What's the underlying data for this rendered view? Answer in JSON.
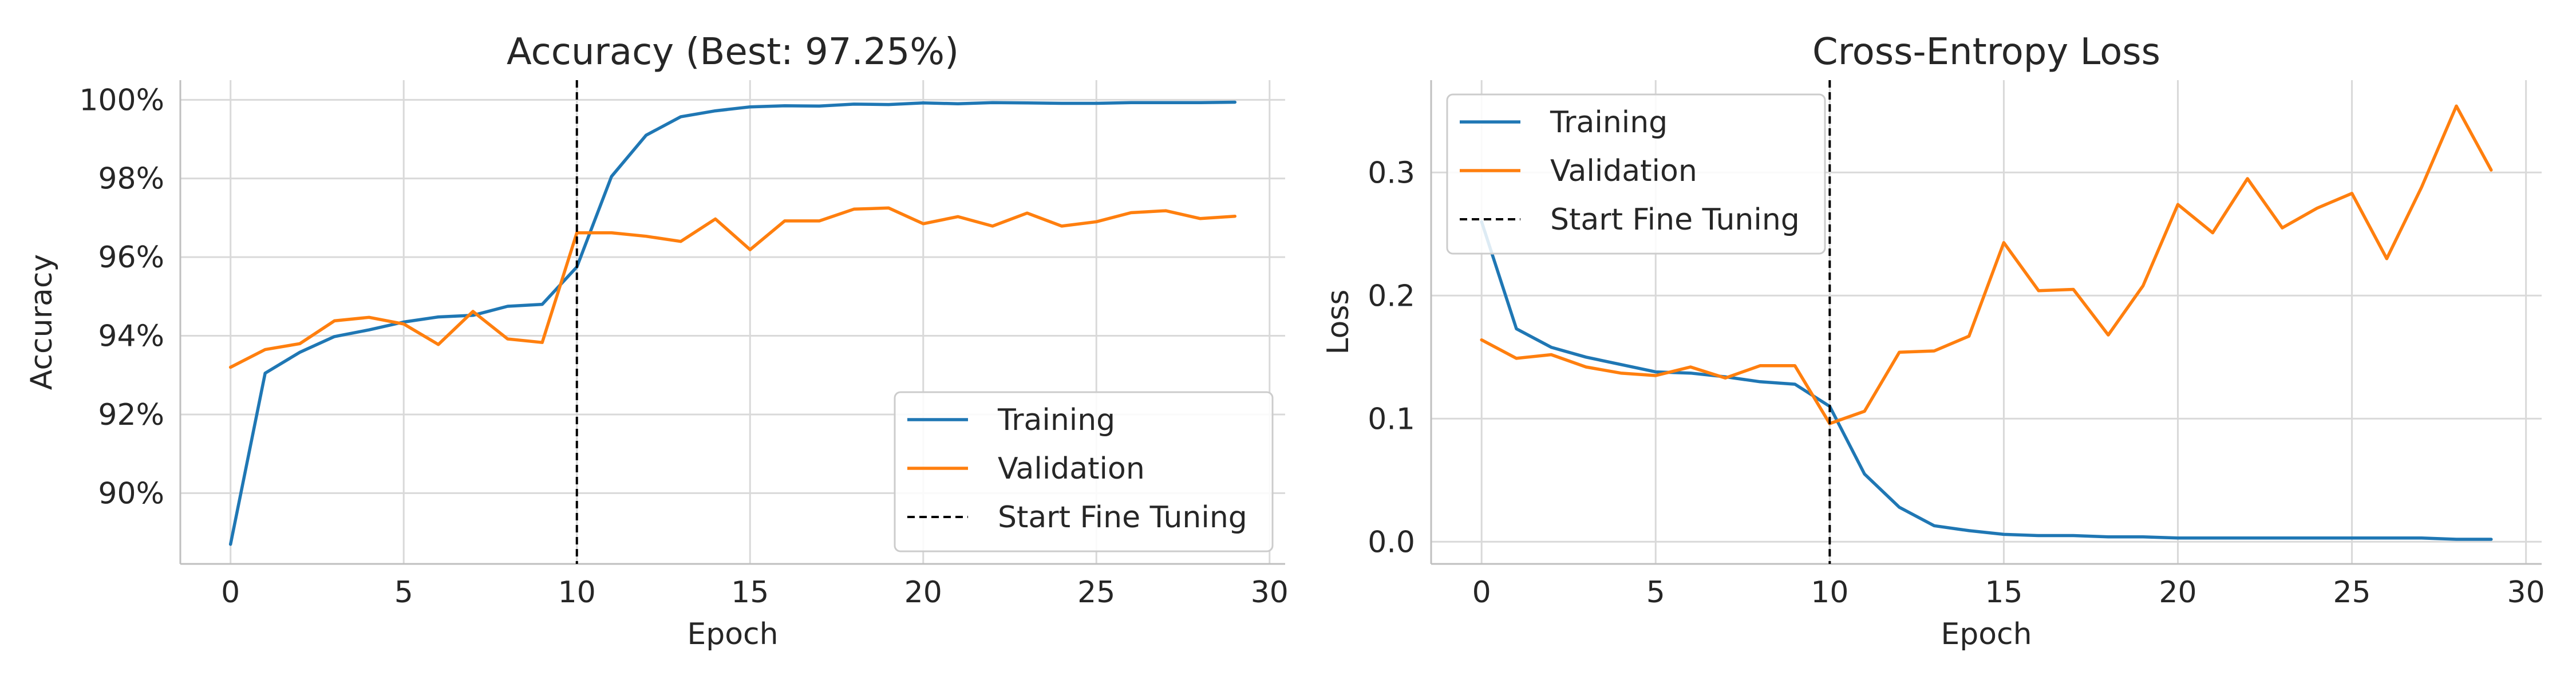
{
  "colors": {
    "training": "#1f77b4",
    "validation": "#ff7f0e",
    "fine_tune_marker": "#000000",
    "grid": "#d9d9d9",
    "spine": "#bfbfbf"
  },
  "chart_data": [
    {
      "type": "line",
      "title": "Accuracy (Best: 97.25%)",
      "xlabel": "Epoch",
      "ylabel": "Accuracy",
      "xlim": [
        -1.45,
        30.45
      ],
      "ylim": [
        88.2,
        100.5
      ],
      "xticks": [
        0,
        5,
        10,
        15,
        20,
        25,
        30
      ],
      "xtick_labels": [
        "0",
        "5",
        "10",
        "15",
        "20",
        "25",
        "30"
      ],
      "yticks": [
        90,
        92,
        94,
        96,
        98,
        100
      ],
      "ytick_labels": [
        "90%",
        "92%",
        "94%",
        "96%",
        "98%",
        "100%"
      ],
      "grid": true,
      "legend_position": "lower-right",
      "x": [
        0,
        1,
        2,
        3,
        4,
        5,
        6,
        7,
        8,
        9,
        10,
        11,
        12,
        13,
        14,
        15,
        16,
        17,
        18,
        19,
        20,
        21,
        22,
        23,
        24,
        25,
        26,
        27,
        28,
        29
      ],
      "series": [
        {
          "name": "Training",
          "color_key": "training",
          "values": [
            88.7,
            93.05,
            93.58,
            93.98,
            94.15,
            94.35,
            94.48,
            94.52,
            94.75,
            94.8,
            95.75,
            98.05,
            99.1,
            99.57,
            99.72,
            99.82,
            99.85,
            99.84,
            99.89,
            99.88,
            99.92,
            99.9,
            99.93,
            99.92,
            99.91,
            99.91,
            99.93,
            99.93,
            99.93,
            99.94
          ]
        },
        {
          "name": "Validation",
          "color_key": "validation",
          "values": [
            93.2,
            93.65,
            93.8,
            94.38,
            94.47,
            94.3,
            93.78,
            94.62,
            93.92,
            93.83,
            96.62,
            96.62,
            96.53,
            96.4,
            96.97,
            96.19,
            96.92,
            96.92,
            97.22,
            97.25,
            96.85,
            97.03,
            96.79,
            97.12,
            96.79,
            96.9,
            97.13,
            97.18,
            96.98,
            97.04
          ]
        }
      ],
      "vline": {
        "x": 10,
        "name": "Start Fine Tuning"
      }
    },
    {
      "type": "line",
      "title": "Cross-Entropy Loss",
      "xlabel": "Epoch",
      "ylabel": "Loss",
      "xlim": [
        -1.45,
        30.45
      ],
      "ylim": [
        -0.018,
        0.375
      ],
      "xticks": [
        0,
        5,
        10,
        15,
        20,
        25,
        30
      ],
      "xtick_labels": [
        "0",
        "5",
        "10",
        "15",
        "20",
        "25",
        "30"
      ],
      "yticks": [
        0.0,
        0.1,
        0.2,
        0.3
      ],
      "ytick_labels": [
        "0.0",
        "0.1",
        "0.2",
        "0.3"
      ],
      "grid": true,
      "legend_position": "top-left",
      "x": [
        0,
        1,
        2,
        3,
        4,
        5,
        6,
        7,
        8,
        9,
        10,
        11,
        12,
        13,
        14,
        15,
        16,
        17,
        18,
        19,
        20,
        21,
        22,
        23,
        24,
        25,
        26,
        27,
        28,
        29
      ],
      "series": [
        {
          "name": "Training",
          "color_key": "training",
          "values": [
            0.26,
            0.173,
            0.158,
            0.15,
            0.144,
            0.138,
            0.137,
            0.134,
            0.13,
            0.128,
            0.11,
            0.055,
            0.028,
            0.013,
            0.009,
            0.006,
            0.005,
            0.005,
            0.004,
            0.004,
            0.003,
            0.003,
            0.003,
            0.003,
            0.003,
            0.003,
            0.003,
            0.003,
            0.002,
            0.002
          ]
        },
        {
          "name": "Validation",
          "color_key": "validation",
          "values": [
            0.164,
            0.149,
            0.152,
            0.142,
            0.137,
            0.135,
            0.142,
            0.133,
            0.143,
            0.143,
            0.096,
            0.106,
            0.154,
            0.155,
            0.167,
            0.243,
            0.204,
            0.205,
            0.168,
            0.208,
            0.274,
            0.251,
            0.295,
            0.255,
            0.271,
            0.283,
            0.23,
            0.288,
            0.354,
            0.302
          ]
        }
      ],
      "vline": {
        "x": 10,
        "name": "Start Fine Tuning"
      }
    }
  ]
}
